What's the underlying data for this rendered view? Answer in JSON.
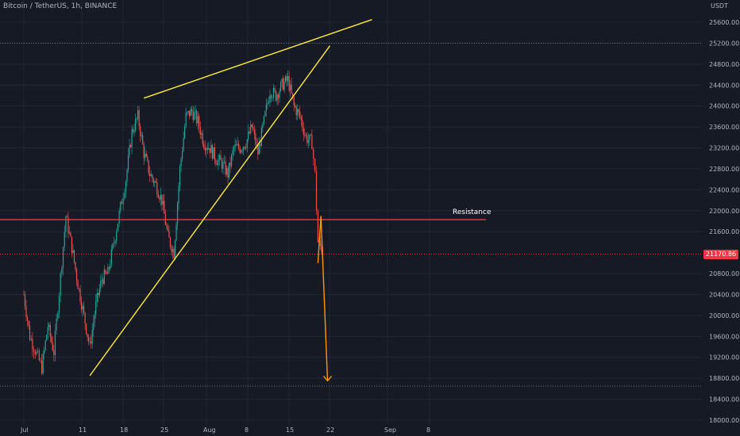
{
  "header": {
    "symbol_title": "Bitcoin / TetherUS, 1h, BINANCE",
    "currency": "USDT"
  },
  "price": {
    "current": "21170.86",
    "current_value": 21170.86,
    "color": "#f23645"
  },
  "annotations": {
    "resistance_label": "Resistance",
    "resistance_value": 21830,
    "wedge_color": "#ffeb3b",
    "projection_color": "#ff9800",
    "resistance_color": "#f23645"
  },
  "colors": {
    "background": "#161a25",
    "up": "#26a69a",
    "down": "#ef5350",
    "grid": "#232734",
    "axis_text": "#b2b5be"
  },
  "chart_data": {
    "type": "candlestick",
    "y_ticks": [
      "25600.00",
      "25200.00",
      "24800.00",
      "24400.00",
      "24000.00",
      "23600.00",
      "23200.00",
      "22800.00",
      "22400.00",
      "22000.00",
      "21600.00",
      "20800.00",
      "20400.00",
      "20000.00",
      "19600.00",
      "19200.00",
      "18800.00",
      "18400.00",
      "18000.00"
    ],
    "x_ticks": [
      "Jul",
      "11",
      "18",
      "25",
      "Aug",
      "8",
      "15",
      "22",
      "Sep",
      "8"
    ],
    "ylim": [
      18000,
      25900
    ],
    "price_path": [
      [
        "Jul 1",
        20400
      ],
      [
        "Jul 2",
        19600
      ],
      [
        "Jul 4",
        19000
      ],
      [
        "Jul 5",
        19800
      ],
      [
        "Jul 6",
        19300
      ],
      [
        "Jul 8",
        21900
      ],
      [
        "Jul 9",
        21300
      ],
      [
        "Jul 10",
        20600
      ],
      [
        "Jul 11",
        20000
      ],
      [
        "Jul 12",
        19400
      ],
      [
        "Jul 13",
        20200
      ],
      [
        "Jul 14",
        20700
      ],
      [
        "Jul 15",
        20800
      ],
      [
        "Jul 16",
        21400
      ],
      [
        "Jul 18",
        22600
      ],
      [
        "Jul 19",
        23500
      ],
      [
        "Jul 20",
        23800
      ],
      [
        "Jul 21",
        23100
      ],
      [
        "Jul 22",
        22700
      ],
      [
        "Jul 23",
        22500
      ],
      [
        "Jul 24",
        22200
      ],
      [
        "Jul 25",
        21500
      ],
      [
        "Jul 26",
        21200
      ],
      [
        "Jul 27",
        22800
      ],
      [
        "Jul 28",
        23800
      ],
      [
        "Jul 29",
        23900
      ],
      [
        "Jul 30",
        23700
      ],
      [
        "Jul 31",
        23300
      ],
      [
        "Aug 1",
        23200
      ],
      [
        "Aug 2",
        23000
      ],
      [
        "Aug 3",
        22900
      ],
      [
        "Aug 4",
        22700
      ],
      [
        "Aug 5",
        23200
      ],
      [
        "Aug 6",
        23200
      ],
      [
        "Aug 7",
        23300
      ],
      [
        "Aug 8",
        23600
      ],
      [
        "Aug 9",
        23100
      ],
      [
        "Aug 10",
        23700
      ],
      [
        "Aug 11",
        24300
      ],
      [
        "Aug 12",
        24200
      ],
      [
        "Aug 13",
        24400
      ],
      [
        "Aug 14",
        24500
      ],
      [
        "Aug 15",
        24000
      ],
      [
        "Aug 16",
        23800
      ],
      [
        "Aug 17",
        23400
      ],
      [
        "Aug 18",
        23300
      ],
      [
        "Aug 18.5",
        22700
      ],
      [
        "Aug 19",
        21400
      ],
      [
        "Aug 20",
        21200
      ]
    ],
    "trend_lines": [
      {
        "name": "wedge-upper",
        "from": [
          "Jul 21",
          24150
        ],
        "to": [
          "Aug 28",
          25650
        ]
      },
      {
        "name": "wedge-lower",
        "from": [
          "Jul 12",
          18850
        ],
        "to": [
          "Aug 21",
          25150
        ]
      }
    ],
    "projection": [
      [
        "Aug 19",
        21000
      ],
      [
        "Aug 19.5",
        21900
      ],
      [
        "Aug 20.6",
        18750
      ]
    ],
    "extreme_levels": [
      25200,
      18650
    ]
  }
}
